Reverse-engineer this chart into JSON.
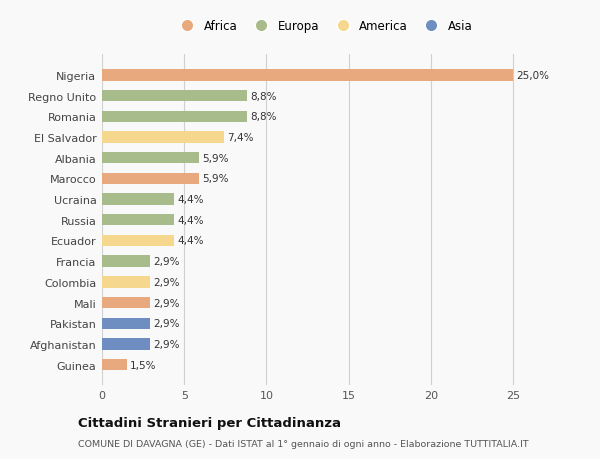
{
  "countries": [
    "Nigeria",
    "Regno Unito",
    "Romania",
    "El Salvador",
    "Albania",
    "Marocco",
    "Ucraina",
    "Russia",
    "Ecuador",
    "Francia",
    "Colombia",
    "Mali",
    "Pakistan",
    "Afghanistan",
    "Guinea"
  ],
  "values": [
    25.0,
    8.8,
    8.8,
    7.4,
    5.9,
    5.9,
    4.4,
    4.4,
    4.4,
    2.9,
    2.9,
    2.9,
    2.9,
    2.9,
    1.5
  ],
  "labels": [
    "25,0%",
    "8,8%",
    "8,8%",
    "7,4%",
    "5,9%",
    "5,9%",
    "4,4%",
    "4,4%",
    "4,4%",
    "2,9%",
    "2,9%",
    "2,9%",
    "2,9%",
    "2,9%",
    "1,5%"
  ],
  "continents": [
    "Africa",
    "Europa",
    "Europa",
    "America",
    "Europa",
    "Africa",
    "Europa",
    "Europa",
    "America",
    "Europa",
    "America",
    "Africa",
    "Asia",
    "Asia",
    "Africa"
  ],
  "colors": {
    "Africa": "#E8A97E",
    "Europa": "#A8BB8A",
    "America": "#F5D78E",
    "Asia": "#6E8DC0"
  },
  "legend_order": [
    "Africa",
    "Europa",
    "America",
    "Asia"
  ],
  "title": "Cittadini Stranieri per Cittadinanza",
  "subtitle": "COMUNE DI DAVAGNA (GE) - Dati ISTAT al 1° gennaio di ogni anno - Elaborazione TUTTITALIA.IT",
  "xlim": [
    0,
    27
  ],
  "xticks": [
    0,
    5,
    10,
    15,
    20,
    25
  ],
  "background_color": "#f9f9f9",
  "grid_color": "#d0d0d0"
}
